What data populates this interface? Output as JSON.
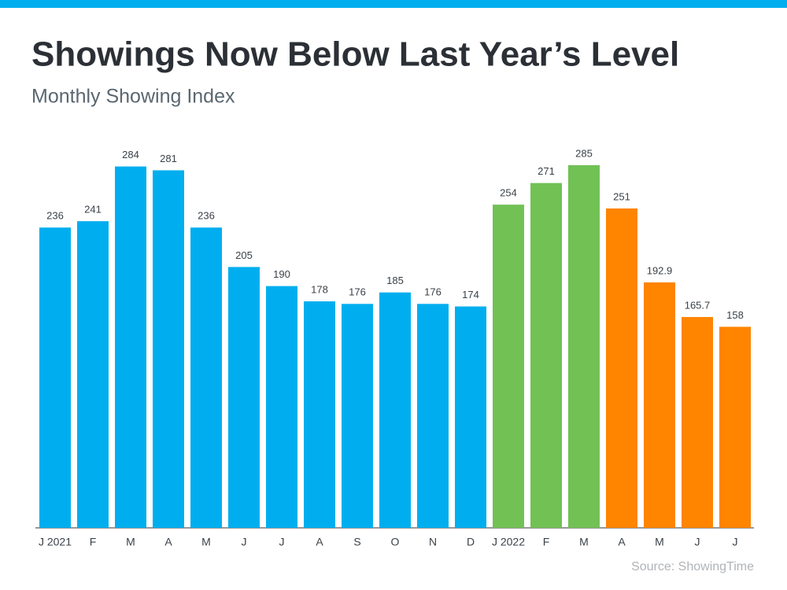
{
  "chart_data": {
    "type": "bar",
    "title": "Showings Now Below Last Year’s Level",
    "subtitle": "Monthly Showing Index",
    "source": "Source: ShowingTime",
    "categories": [
      "J 2021",
      "F",
      "M",
      "A",
      "M",
      "J",
      "J",
      "A",
      "S",
      "O",
      "N",
      "D",
      "J 2022",
      "F",
      "M",
      "A",
      "M",
      "J",
      "J"
    ],
    "values": [
      236,
      241,
      284,
      281,
      236,
      205,
      190,
      178,
      176,
      185,
      176,
      174,
      254,
      271,
      285,
      251,
      192.9,
      165.7,
      158
    ],
    "colors": [
      "#00aeef",
      "#00aeef",
      "#00aeef",
      "#00aeef",
      "#00aeef",
      "#00aeef",
      "#00aeef",
      "#00aeef",
      "#00aeef",
      "#00aeef",
      "#00aeef",
      "#00aeef",
      "#72c155",
      "#72c155",
      "#72c155",
      "#ff8400",
      "#ff8400",
      "#ff8400",
      "#ff8400"
    ]
  }
}
